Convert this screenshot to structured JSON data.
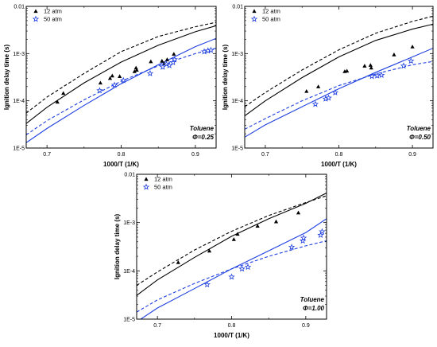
{
  "colors": {
    "black": "#000000",
    "blue": "#1f3fe0"
  },
  "chart_data": [
    {
      "type": "scatter",
      "xlabel": "1000/T (1/K)",
      "ylabel": "Ignition delay time (s)",
      "xlim": [
        0.672,
        0.928
      ],
      "ylim": [
        1e-05,
        0.01
      ],
      "yscale": "log",
      "xticks": [
        0.7,
        0.8,
        0.9
      ],
      "xtick_labels": [
        "0.7",
        "0.8",
        "0.9"
      ],
      "yticks": [
        1e-05,
        0.0001,
        0.001,
        0.01
      ],
      "ytick_labels": [
        "1E-5",
        "1E-4",
        "1E-3",
        "0.01"
      ],
      "legend_position": "top-left",
      "annotation": {
        "fuel": "Toluene",
        "phi": "Φ=0.25"
      },
      "series": [
        {
          "name": "12 atm",
          "marker": "triangle",
          "color": "#000000",
          "points": [
            [
              0.714,
              9.5e-05
            ],
            [
              0.722,
              0.000145
            ],
            [
              0.772,
              0.00024
            ],
            [
              0.785,
              0.0003
            ],
            [
              0.788,
              0.00034
            ],
            [
              0.798,
              0.00033
            ],
            [
              0.818,
              0.00042
            ],
            [
              0.82,
              0.0005
            ],
            [
              0.821,
              0.00045
            ],
            [
              0.84,
              0.00068
            ],
            [
              0.855,
              0.0007
            ],
            [
              0.858,
              0.00062
            ],
            [
              0.862,
              0.00075
            ],
            [
              0.871,
              0.00098
            ]
          ]
        },
        {
          "name": "50 atm",
          "marker": "star",
          "color": "#1f3fe0",
          "points": [
            [
              0.771,
              0.000165
            ],
            [
              0.791,
              0.000215
            ],
            [
              0.803,
              0.00027
            ],
            [
              0.839,
              0.00038
            ],
            [
              0.856,
              0.00052
            ],
            [
              0.861,
              0.0006
            ],
            [
              0.865,
              0.00056
            ],
            [
              0.87,
              0.00065
            ],
            [
              0.872,
              0.00075
            ],
            [
              0.912,
              0.0011
            ],
            [
              0.917,
              0.00115
            ],
            [
              0.921,
              0.00118
            ]
          ]
        }
      ],
      "curves": [
        {
          "style": "dashed",
          "color": "#000000",
          "points": [
            [
              0.672,
              5.5e-05
            ],
            [
              0.7,
              0.00012
            ],
            [
              0.75,
              0.00038
            ],
            [
              0.8,
              0.0011
            ],
            [
              0.85,
              0.0023
            ],
            [
              0.9,
              0.0037
            ],
            [
              0.928,
              0.0046
            ]
          ]
        },
        {
          "style": "solid",
          "color": "#000000",
          "points": [
            [
              0.672,
              3.3e-05
            ],
            [
              0.7,
              7.3e-05
            ],
            [
              0.75,
              0.00024
            ],
            [
              0.8,
              0.00066
            ],
            [
              0.85,
              0.0015
            ],
            [
              0.9,
              0.0029
            ],
            [
              0.928,
              0.0039
            ]
          ]
        },
        {
          "style": "solid",
          "color": "#1f3fe0",
          "points": [
            [
              0.672,
              1.3e-05
            ],
            [
              0.7,
              2.6e-05
            ],
            [
              0.75,
              8e-05
            ],
            [
              0.8,
              0.00023
            ],
            [
              0.85,
              0.00058
            ],
            [
              0.9,
              0.0014
            ],
            [
              0.928,
              0.0021
            ]
          ]
        },
        {
          "style": "dashed",
          "color": "#1f3fe0",
          "points": [
            [
              0.672,
              1.9e-05
            ],
            [
              0.7,
              3.8e-05
            ],
            [
              0.75,
              0.000105
            ],
            [
              0.8,
              0.00026
            ],
            [
              0.85,
              0.00055
            ],
            [
              0.9,
              0.001
            ],
            [
              0.928,
              0.0013
            ]
          ]
        }
      ]
    },
    {
      "type": "scatter",
      "xlabel": "1000/T (1/K)",
      "ylabel": "Ignition delay time (s)",
      "xlim": [
        0.672,
        0.928
      ],
      "ylim": [
        1e-05,
        0.01
      ],
      "yscale": "log",
      "xticks": [
        0.7,
        0.8,
        0.9
      ],
      "xtick_labels": [
        "0.7",
        "0.8",
        "0.9"
      ],
      "yticks": [
        1e-05,
        0.0001,
        0.001,
        0.01
      ],
      "ytick_labels": [
        "1E-5",
        "1E-4",
        "1E-3",
        "0.01"
      ],
      "legend_position": "top-left",
      "annotation": {
        "fuel": "Toluene",
        "phi": "Φ=0.50"
      },
      "series": [
        {
          "name": "12 atm",
          "marker": "triangle",
          "color": "#000000",
          "points": [
            [
              0.756,
              0.00016
            ],
            [
              0.772,
              0.0002
            ],
            [
              0.808,
              0.00042
            ],
            [
              0.811,
              0.00043
            ],
            [
              0.835,
              0.00055
            ],
            [
              0.843,
              0.00057
            ],
            [
              0.844,
              0.0005
            ],
            [
              0.875,
              0.00095
            ],
            [
              0.9,
              0.0014
            ]
          ]
        },
        {
          "name": "50 atm",
          "marker": "star",
          "color": "#1f3fe0",
          "points": [
            [
              0.768,
              8.5e-05
            ],
            [
              0.782,
              0.00011
            ],
            [
              0.786,
              0.000115
            ],
            [
              0.795,
              0.00015
            ],
            [
              0.845,
              0.00033
            ],
            [
              0.852,
              0.00034
            ],
            [
              0.858,
              0.00035
            ],
            [
              0.888,
              0.00055
            ],
            [
              0.898,
              0.0007
            ]
          ]
        }
      ],
      "curves": [
        {
          "style": "dashed",
          "color": "#000000",
          "points": [
            [
              0.672,
              7.5e-05
            ],
            [
              0.7,
              0.00015
            ],
            [
              0.75,
              0.00045
            ],
            [
              0.8,
              0.0012
            ],
            [
              0.85,
              0.0027
            ],
            [
              0.9,
              0.0048
            ],
            [
              0.928,
              0.0062
            ]
          ]
        },
        {
          "style": "solid",
          "color": "#000000",
          "points": [
            [
              0.672,
              4.8e-05
            ],
            [
              0.7,
              0.0001
            ],
            [
              0.75,
              0.00031
            ],
            [
              0.8,
              0.00085
            ],
            [
              0.85,
              0.0019
            ],
            [
              0.9,
              0.0033
            ],
            [
              0.928,
              0.0042
            ]
          ]
        },
        {
          "style": "solid",
          "color": "#1f3fe0",
          "points": [
            [
              0.672,
              1.7e-05
            ],
            [
              0.7,
              3.1e-05
            ],
            [
              0.75,
              7.5e-05
            ],
            [
              0.8,
              0.00018
            ],
            [
              0.85,
              0.0004
            ],
            [
              0.9,
              0.00085
            ],
            [
              0.928,
              0.0013
            ]
          ]
        },
        {
          "style": "dashed",
          "color": "#1f3fe0",
          "points": [
            [
              0.672,
              2.5e-05
            ],
            [
              0.7,
              4.2e-05
            ],
            [
              0.75,
              0.0001
            ],
            [
              0.8,
              0.00021
            ],
            [
              0.85,
              0.00037
            ],
            [
              0.9,
              0.00058
            ],
            [
              0.928,
              0.00068
            ]
          ]
        }
      ]
    },
    {
      "type": "scatter",
      "xlabel": "1000/T (1/K)",
      "ylabel": "Ignition delay time (s)",
      "xlim": [
        0.672,
        0.928
      ],
      "ylim": [
        1e-05,
        0.01
      ],
      "yscale": "log",
      "xticks": [
        0.7,
        0.8,
        0.9
      ],
      "xtick_labels": [
        "0.7",
        "0.8",
        "0.9"
      ],
      "yticks": [
        1e-05,
        0.0001,
        0.001,
        0.01
      ],
      "ytick_labels": [
        "1E-5",
        "1E-4",
        "1E-3",
        "0.01"
      ],
      "legend_position": "top-left",
      "annotation": {
        "fuel": "Toluene",
        "phi": "Φ=1.00"
      },
      "series": [
        {
          "name": "12 atm",
          "marker": "triangle",
          "color": "#000000",
          "points": [
            [
              0.728,
              0.00015
            ],
            [
              0.77,
              0.00026
            ],
            [
              0.803,
              0.00045
            ],
            [
              0.808,
              0.00058
            ],
            [
              0.835,
              0.00085
            ],
            [
              0.86,
              0.00105
            ],
            [
              0.89,
              0.0016
            ]
          ]
        },
        {
          "name": "50 atm",
          "marker": "star",
          "color": "#1f3fe0",
          "points": [
            [
              0.767,
              5.2e-05
            ],
            [
              0.8,
              7.5e-05
            ],
            [
              0.814,
              0.00011
            ],
            [
              0.822,
              0.00012
            ],
            [
              0.881,
              0.00031
            ],
            [
              0.896,
              0.00042
            ],
            [
              0.897,
              0.00048
            ],
            [
              0.92,
              0.00055
            ],
            [
              0.922,
              0.00065
            ]
          ]
        }
      ],
      "curves": [
        {
          "style": "dashed",
          "color": "#000000",
          "points": [
            [
              0.672,
              5e-05
            ],
            [
              0.7,
              9.5e-05
            ],
            [
              0.75,
              0.00027
            ],
            [
              0.8,
              0.00066
            ],
            [
              0.85,
              0.0014
            ],
            [
              0.9,
              0.0026
            ],
            [
              0.928,
              0.0036
            ]
          ]
        },
        {
          "style": "solid",
          "color": "#000000",
          "points": [
            [
              0.672,
              3.1e-05
            ],
            [
              0.7,
              6.5e-05
            ],
            [
              0.75,
              0.00019
            ],
            [
              0.8,
              0.00052
            ],
            [
              0.85,
              0.0012
            ],
            [
              0.9,
              0.0025
            ],
            [
              0.928,
              0.0041
            ]
          ]
        },
        {
          "style": "solid",
          "color": "#1f3fe0",
          "points": [
            [
              0.672,
              8.8e-06
            ],
            [
              0.7,
              1.7e-05
            ],
            [
              0.75,
              4.3e-05
            ],
            [
              0.8,
              0.00011
            ],
            [
              0.85,
              0.00026
            ],
            [
              0.9,
              0.00062
            ],
            [
              0.928,
              0.0012
            ]
          ]
        },
        {
          "style": "dashed",
          "color": "#1f3fe0",
          "points": [
            [
              0.672,
              1.4e-05
            ],
            [
              0.7,
              2.5e-05
            ],
            [
              0.75,
              5.5e-05
            ],
            [
              0.8,
              0.00011
            ],
            [
              0.85,
              0.0002
            ],
            [
              0.9,
              0.00033
            ],
            [
              0.928,
              0.00042
            ]
          ]
        }
      ]
    }
  ]
}
